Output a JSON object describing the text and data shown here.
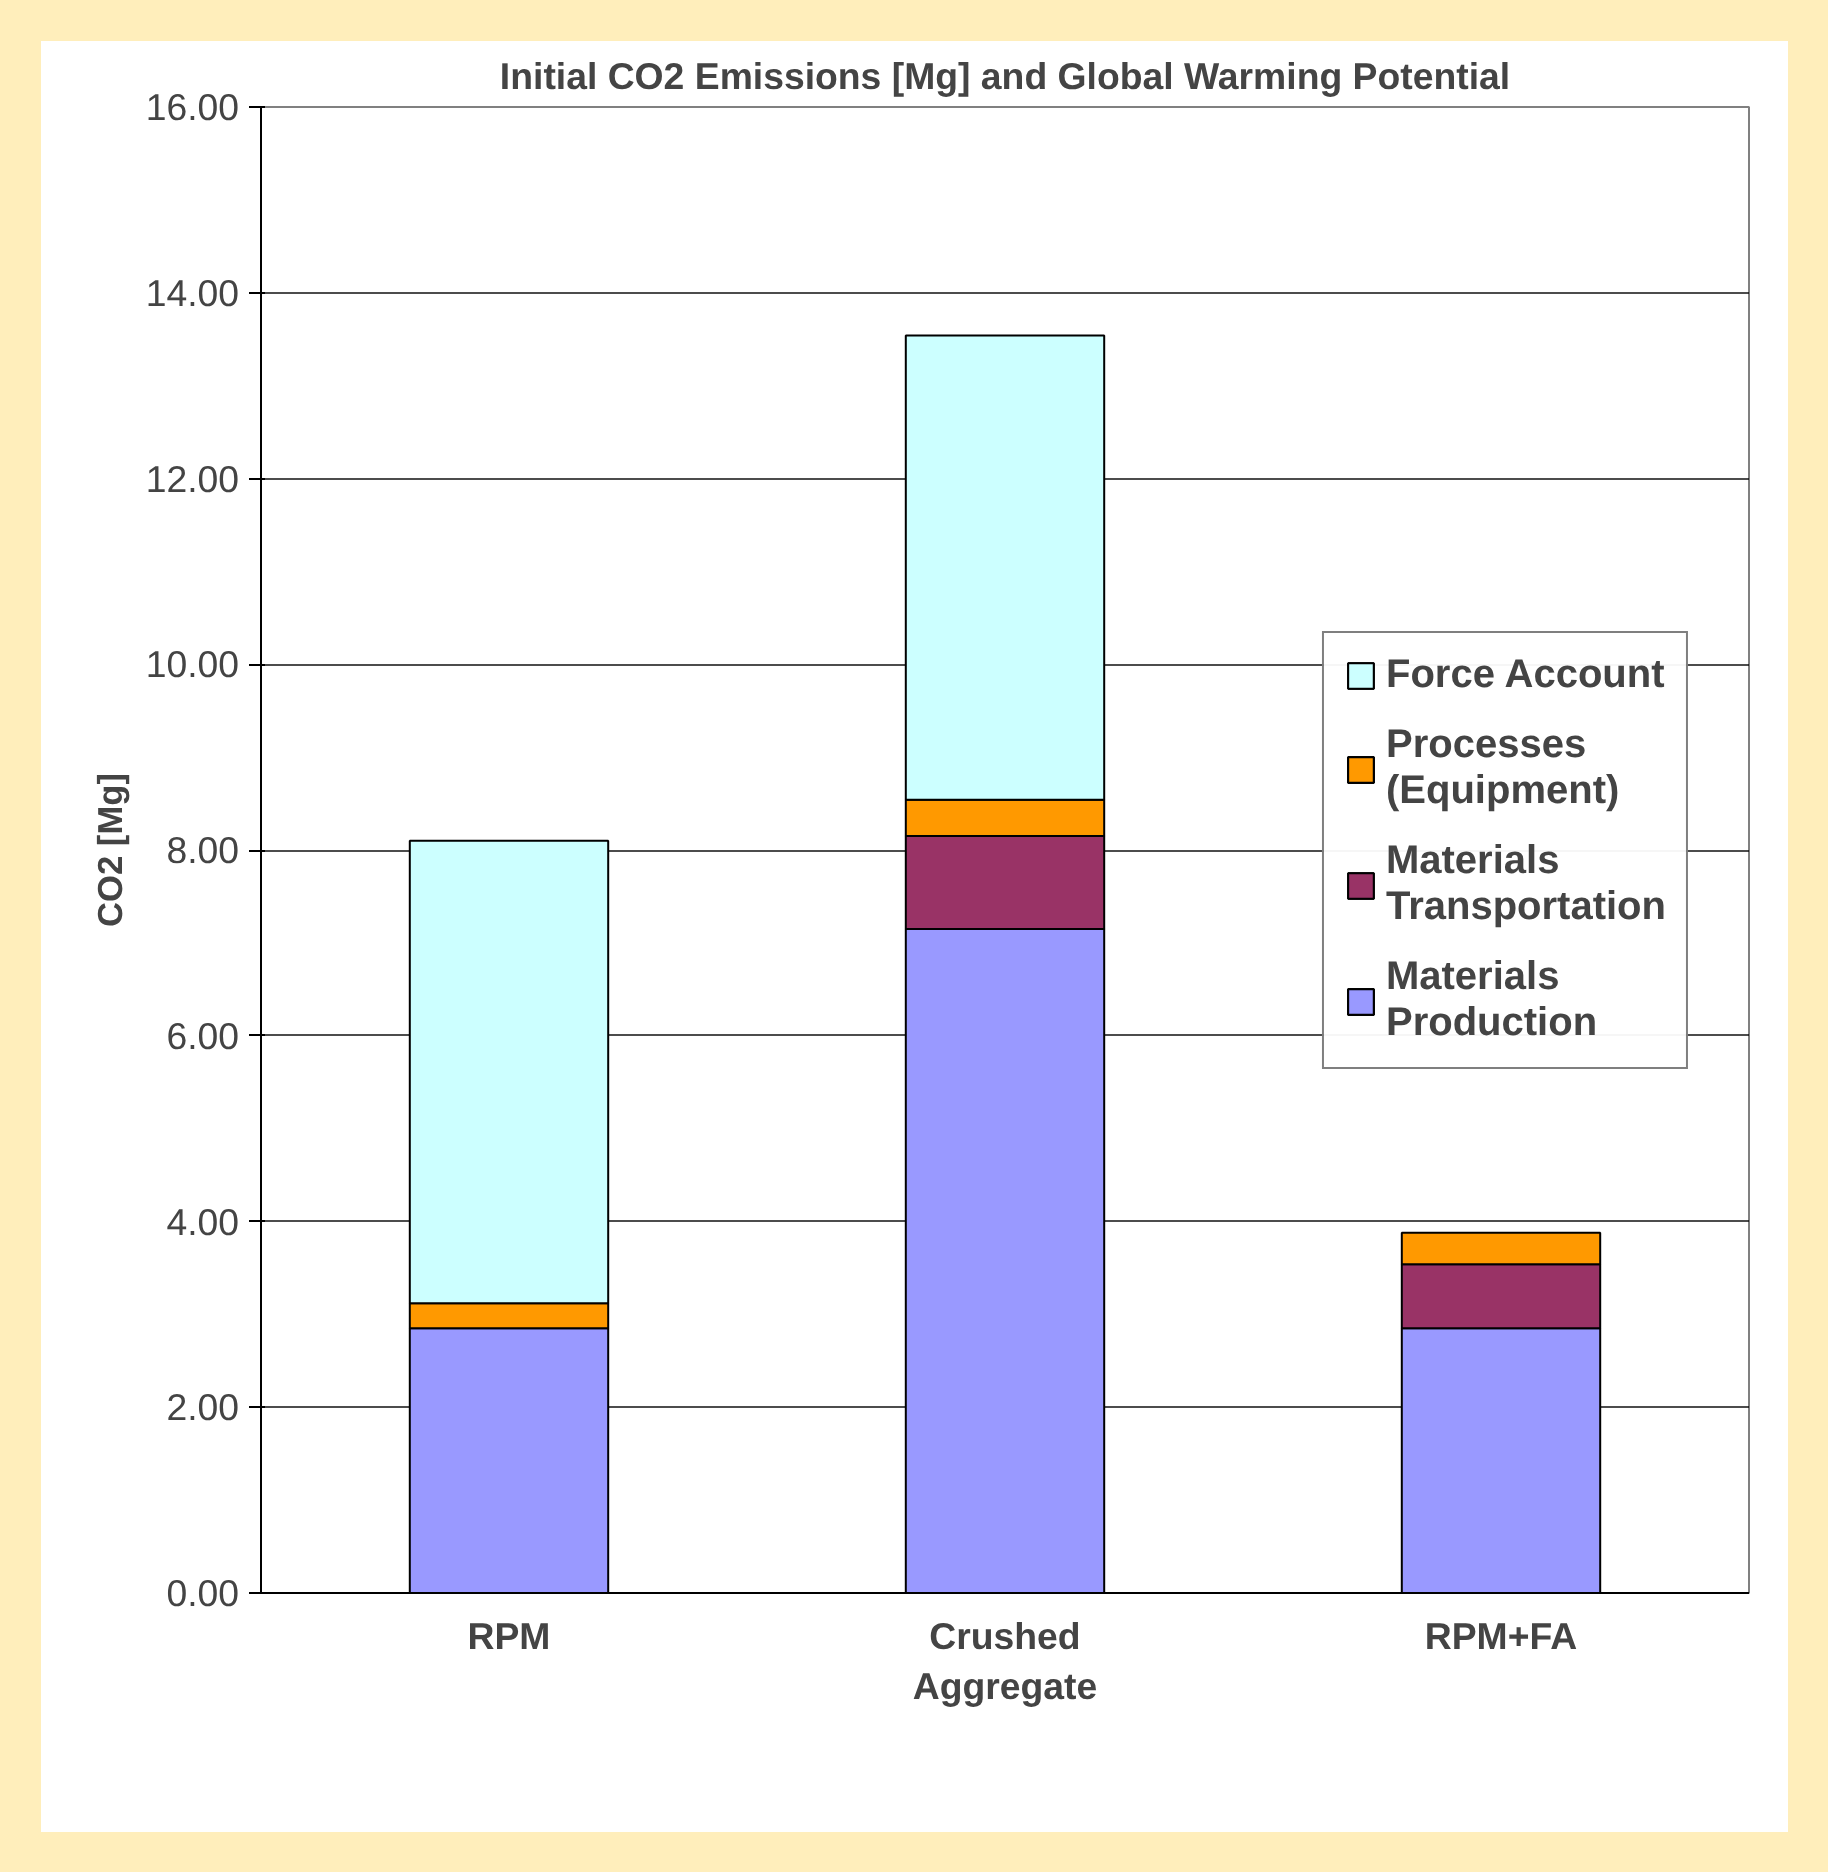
{
  "chart_data": {
    "type": "bar",
    "title": "Initial CO2 Emissions [Mg] and Global Warming Potential",
    "ylabel": "CO2 [Mg]",
    "categories": [
      "RPM",
      "Crushed Aggregate",
      "RPM+FA"
    ],
    "stacked": true,
    "series": [
      {
        "name": "Materials Production",
        "color": "#9999ff",
        "values": [
          2.85,
          7.15,
          2.85
        ]
      },
      {
        "name": "Materials Transportation",
        "color": "#993366",
        "values": [
          0,
          1.0,
          0.69
        ]
      },
      {
        "name": "Processes (Equipment)",
        "color": "#ff9900",
        "values": [
          0.27,
          0.39,
          0.34
        ]
      },
      {
        "name": "Force Account",
        "color": "#ccffff",
        "values": [
          4.98,
          5.0,
          0
        ]
      }
    ],
    "ylim": [
      0,
      16
    ],
    "yticks": [
      {
        "value": 0,
        "label": "0.00"
      },
      {
        "value": 2,
        "label": "2.00"
      },
      {
        "value": 4,
        "label": "4.00"
      },
      {
        "value": 6,
        "label": "6.00"
      },
      {
        "value": 8,
        "label": "8.00"
      },
      {
        "value": 10,
        "label": "10.00"
      },
      {
        "value": 12,
        "label": "12.00"
      },
      {
        "value": 14,
        "label": "14.00"
      },
      {
        "value": 16,
        "label": "16.00"
      }
    ],
    "grid": "y",
    "legend": "right"
  }
}
